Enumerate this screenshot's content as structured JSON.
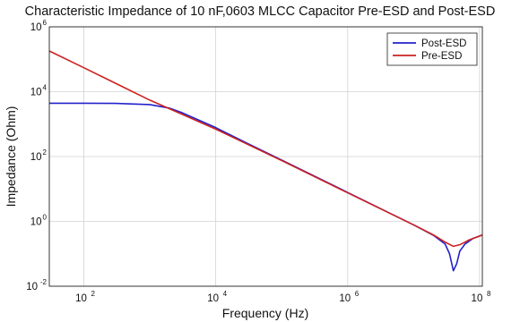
{
  "chart_data": {
    "type": "line",
    "title": "Characteristic Impedance of 10 nF,0603 MLCC Capacitor Pre-ESD and Post-ESD",
    "xlabel": "Frequency (Hz)",
    "ylabel": "Impedance (Ohm)",
    "xscale": "log",
    "yscale": "log",
    "xlim": [
      30,
      110000000
    ],
    "ylim": [
      0.01,
      1000000
    ],
    "x_ticks": [
      {
        "base": "10",
        "exp": "2",
        "value": 100
      },
      {
        "base": "10",
        "exp": "4",
        "value": 10000
      },
      {
        "base": "10",
        "exp": "6",
        "value": 1000000
      },
      {
        "base": "10",
        "exp": "8",
        "value": 100000000
      }
    ],
    "y_ticks": [
      {
        "base": "10",
        "exp": "-2",
        "value": 0.01
      },
      {
        "base": "10",
        "exp": "0",
        "value": 1
      },
      {
        "base": "10",
        "exp": "2",
        "value": 100
      },
      {
        "base": "10",
        "exp": "4",
        "value": 10000
      },
      {
        "base": "10",
        "exp": "6",
        "value": 1000000
      }
    ],
    "grid": true,
    "legend_position": "top-right",
    "series": [
      {
        "name": "Post-ESD",
        "color": "#2222cc",
        "x": [
          30,
          100,
          300,
          1000,
          2000,
          3000,
          5000,
          10000,
          30000,
          100000,
          1000000,
          10000000,
          20000000,
          30000000,
          35000000,
          40000000,
          45000000,
          50000000,
          60000000,
          80000000,
          110000000
        ],
        "y": [
          4400,
          4400,
          4350,
          4000,
          3100,
          2300,
          1450,
          780,
          255,
          78,
          7.8,
          0.78,
          0.37,
          0.2,
          0.1,
          0.03,
          0.05,
          0.12,
          0.2,
          0.3,
          0.38
        ]
      },
      {
        "name": "Pre-ESD",
        "color": "#cc2222",
        "x": [
          30,
          100,
          1000,
          10000,
          100000,
          1000000,
          10000000,
          20000000,
          30000000,
          40000000,
          50000000,
          70000000,
          110000000
        ],
        "y": [
          180000,
          55000,
          5500,
          700,
          75,
          7.6,
          0.78,
          0.38,
          0.23,
          0.17,
          0.19,
          0.27,
          0.38
        ]
      }
    ]
  }
}
